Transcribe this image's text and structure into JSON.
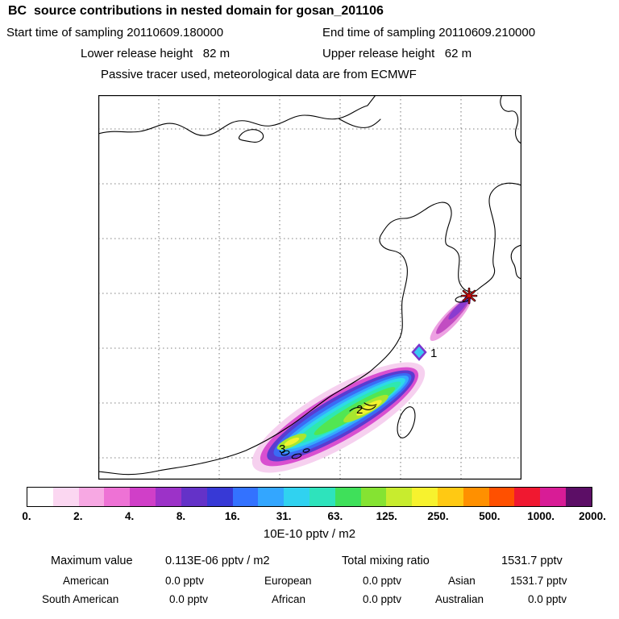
{
  "header": {
    "title": "BC  source contributions in nested domain for gosan_201106",
    "start_time": "Start time of sampling 20110609.180000",
    "end_time": "End time of sampling 20110609.210000",
    "lower_release": "Lower release height   82 m",
    "upper_release": "Upper release height   62 m",
    "tracer_line": "Passive tracer used, meteorological data are from ECMWF"
  },
  "map": {
    "plume_labels": [
      "1",
      "2",
      "3"
    ]
  },
  "colorbar": {
    "tick_labels": [
      "0.",
      "2.",
      "4.",
      "8.",
      "16.",
      "31.",
      "63.",
      "125.",
      "250.",
      "500.",
      "1000.",
      "2000."
    ],
    "unit_label": "10E-10 pptv / m2",
    "colors": [
      "#ffffff",
      "#fbd7f1",
      "#f7a8e3",
      "#ee72d5",
      "#d03fc8",
      "#9c32c8",
      "#6432c8",
      "#3739d6",
      "#3372ff",
      "#33a6ff",
      "#30d2f0",
      "#2ee3bc",
      "#3fe05a",
      "#85e332",
      "#c8ec2e",
      "#f7f22e",
      "#ffc913",
      "#ff9000",
      "#ff5000",
      "#f01830",
      "#d81c96",
      "#5c0e66"
    ]
  },
  "stats": {
    "maximum_label": "Maximum value",
    "maximum_value": "0.113E-06 pptv / m2",
    "total_label": "Total mixing ratio",
    "total_value": "1531.7 pptv",
    "regions": [
      {
        "label": "American",
        "value": "0.0 pptv"
      },
      {
        "label": "European",
        "value": "0.0 pptv"
      },
      {
        "label": "Asian",
        "value": "1531.7 pptv"
      },
      {
        "label": "South American",
        "value": "0.0 pptv"
      },
      {
        "label": "African",
        "value": "0.0 pptv"
      },
      {
        "label": "Australian",
        "value": "0.0 pptv"
      }
    ]
  },
  "chart_data": {
    "type": "heatmap",
    "title": "BC  source contributions in nested domain for gosan_201106",
    "subtitle_lines": [
      "Start time of sampling 20110609.180000   End time of sampling 20110609.210000",
      "Lower release height 82 m   Upper release height 62 m",
      "Passive tracer used, meteorological data are from ECMWF"
    ],
    "colorbar_boundaries": [
      0,
      2,
      4,
      8,
      16,
      31,
      63,
      125,
      250,
      500,
      1000,
      2000
    ],
    "colorbar_units": "10E-10 pptv / m2",
    "maximum_value": "0.113E-06 pptv / m2",
    "total_mixing_ratio": "1531.7 pptv",
    "source_contributions": {
      "American": "0.0 pptv",
      "European": "0.0 pptv",
      "Asian": "1531.7 pptv",
      "South American": "0.0 pptv",
      "African": "0.0 pptv",
      "Australian": "0.0 pptv"
    },
    "plume_point_labels": [
      "1",
      "2",
      "3"
    ],
    "legend_position": "bottom",
    "grid": "dotted lat/lon graticule over East Asia map with receptor star marker"
  }
}
